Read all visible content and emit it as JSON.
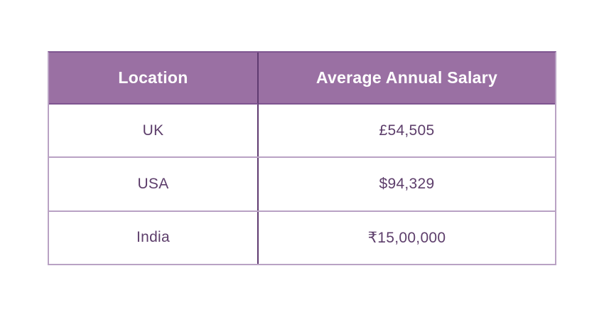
{
  "table": {
    "columns": [
      {
        "label": "Location"
      },
      {
        "label": "Average Annual Salary"
      }
    ],
    "rows": [
      {
        "location": "UK",
        "salary": "£54,505"
      },
      {
        "location": "USA",
        "salary": "$94,329"
      },
      {
        "location": "India",
        "salary": "₹15,00,000"
      }
    ]
  },
  "chart_data": {
    "type": "table",
    "title": "",
    "columns": [
      "Location",
      "Average Annual Salary"
    ],
    "rows": [
      [
        "UK",
        "£54,505"
      ],
      [
        "USA",
        "$94,329"
      ],
      [
        "India",
        "₹15,00,000"
      ]
    ]
  },
  "colors": {
    "header_bg": "#9a70a3",
    "header_text": "#ffffff",
    "cell_text": "#5d3e6b",
    "divider_dark": "#5f3a70",
    "border_light": "#b9a2c4",
    "header_border": "#7e5590",
    "page_bg": "#ffffff"
  }
}
